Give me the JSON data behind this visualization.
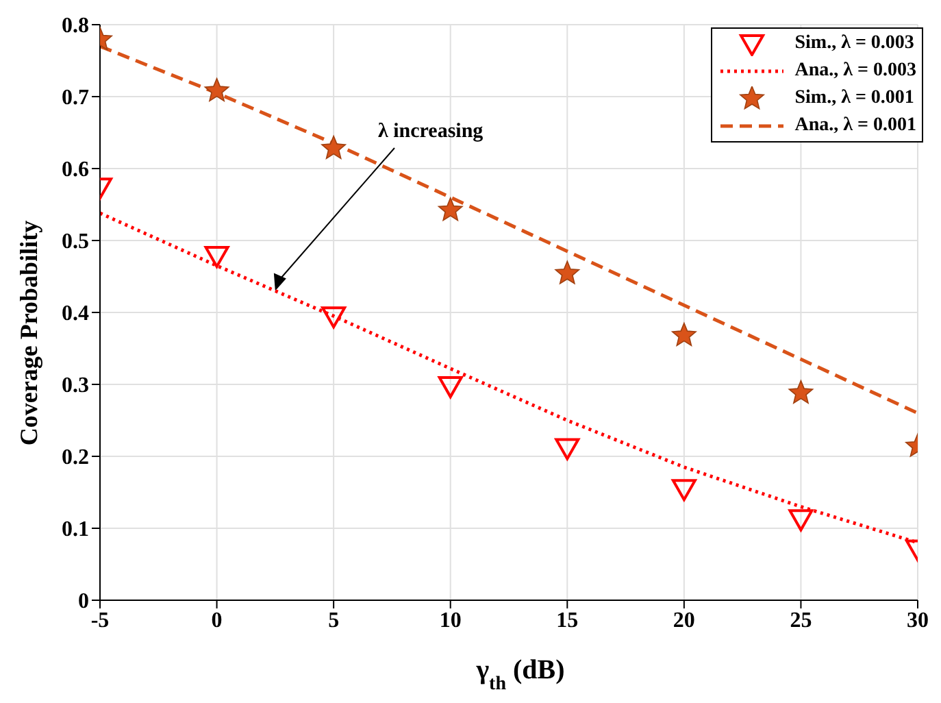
{
  "chart_data": {
    "type": "line",
    "xlabel": "γ$_{th}$ (dB)",
    "ylabel": "Coverage Probability",
    "x": [
      -5,
      0,
      5,
      10,
      15,
      20,
      25,
      30
    ],
    "xlim": [
      -5,
      30
    ],
    "xticks": [
      -5,
      0,
      5,
      10,
      15,
      20,
      25,
      30
    ],
    "ylim": [
      0,
      0.8
    ],
    "yticks": [
      0,
      0.1,
      0.2,
      0.3,
      0.4,
      0.5,
      0.6,
      0.7,
      0.8
    ],
    "grid": true,
    "legend": "top right",
    "annotations": [
      {
        "text": "λ increasing",
        "x": 2.5,
        "y": 0.43
      }
    ],
    "series": [
      {
        "name": "Sim., λ = 0.003",
        "type": "scatter",
        "marker": "triangle",
        "color": "#ff0000",
        "values": [
          0.574,
          0.479,
          0.395,
          0.298,
          0.212,
          0.155,
          0.113,
          0.071
        ]
      },
      {
        "name": "Ana., λ = 0.003",
        "line_style": "dotted",
        "marker": "none",
        "color": "#ff0000",
        "values": [
          0.538,
          0.465,
          0.395,
          0.322,
          0.25,
          0.185,
          0.13,
          0.08
        ]
      },
      {
        "name": "Sim., λ = 0.001",
        "type": "scatter",
        "marker": "star",
        "color": "#d95319",
        "values": [
          0.779,
          0.708,
          0.628,
          0.542,
          0.454,
          0.368,
          0.288,
          0.214
        ]
      },
      {
        "name": "Ana., λ = 0.001",
        "line_style": "dashed",
        "marker": "none",
        "color": "#d95319",
        "values": [
          0.77,
          0.705,
          0.635,
          0.56,
          0.485,
          0.41,
          0.335,
          0.26
        ]
      }
    ]
  }
}
